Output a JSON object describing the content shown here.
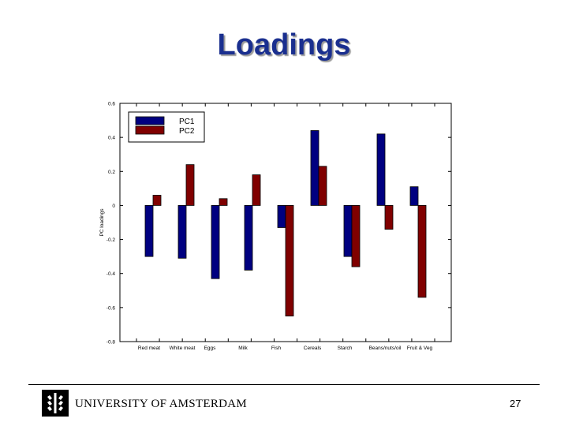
{
  "slide": {
    "title": "Loadings",
    "university": "UNIVERSITY OF AMSTERDAM",
    "page_number": "27"
  },
  "colors": {
    "pc1": "#000080",
    "pc2": "#800000",
    "title": "#1a2f8f"
  },
  "chart_data": {
    "type": "bar",
    "categories": [
      "Red meat",
      "White meat",
      "Eggs",
      "Milk",
      "Fish",
      "Cereals",
      "Starch",
      "Beans/nuts/oil",
      "Fruit & Veg"
    ],
    "series": [
      {
        "name": "PC1",
        "values": [
          -0.3,
          -0.31,
          -0.43,
          -0.38,
          -0.13,
          0.44,
          -0.3,
          0.42,
          0.11
        ]
      },
      {
        "name": "PC2",
        "values": [
          0.06,
          0.24,
          0.04,
          0.18,
          -0.65,
          0.23,
          -0.36,
          -0.14,
          -0.54
        ]
      }
    ],
    "ylabel": "PC loadings",
    "ylim": [
      -0.8,
      0.6
    ],
    "yticks": [
      0.6,
      0.4,
      0.2,
      0,
      -0.2,
      -0.4,
      -0.6,
      -0.8
    ],
    "ytick_labels": [
      "0.6",
      "0.4",
      "0.2",
      "0",
      "-0.2",
      "-0.4",
      "-0.6",
      "-0.8"
    ],
    "xtick_labels": [
      "Red meat",
      "White meat",
      "Eggs",
      "",
      "Milk",
      "",
      "Fish",
      "",
      "Cereals",
      "",
      "Starch",
      "",
      "Beans/nuts/oil",
      "Fruit & Veg"
    ],
    "legend_position": "top-left",
    "grid": false
  }
}
